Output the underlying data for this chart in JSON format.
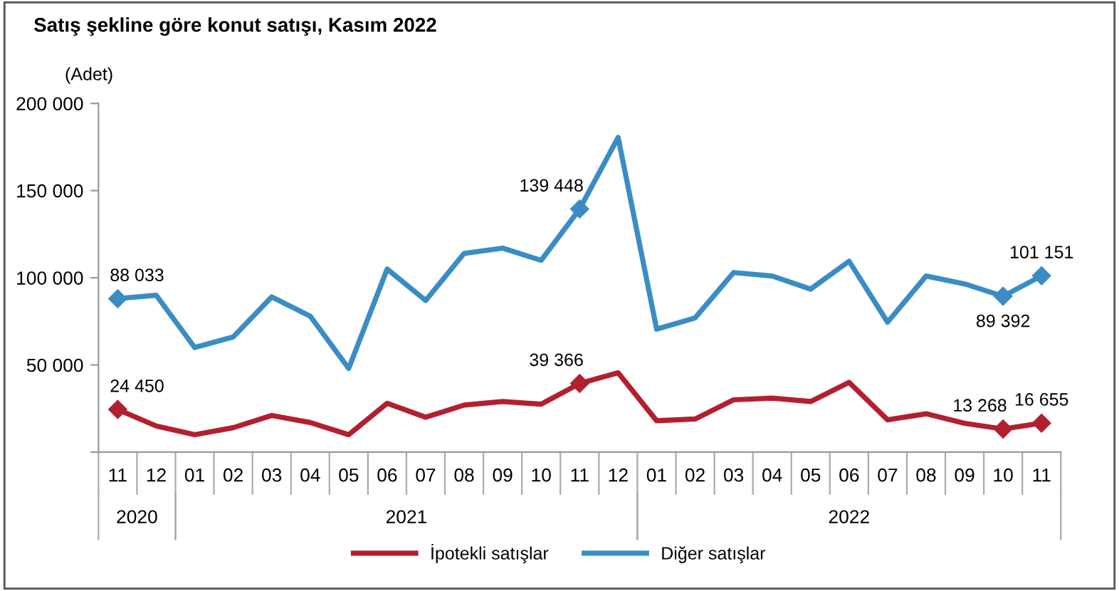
{
  "chart_data": {
    "type": "line",
    "title": "Satış şekline göre konut satışı, Kasım 2022",
    "ylabel": "(Adet)",
    "categories": [
      "11",
      "12",
      "01",
      "02",
      "03",
      "04",
      "05",
      "06",
      "07",
      "08",
      "09",
      "10",
      "11",
      "12",
      "01",
      "02",
      "03",
      "04",
      "05",
      "06",
      "07",
      "08",
      "09",
      "10",
      "11"
    ],
    "annotations": [
      "2020",
      "2021",
      "2022"
    ],
    "series": [
      {
        "name": "İpotekli satışlar",
        "color": "#b22030",
        "values": [
          24450,
          15000,
          10000,
          14000,
          21000,
          17000,
          10000,
          28000,
          20000,
          27000,
          29000,
          27500,
          39366,
          45500,
          18000,
          19000,
          30000,
          31000,
          29000,
          40000,
          18500,
          22000,
          16500,
          13268,
          16655
        ],
        "value_labels": [
          "24 450",
          null,
          null,
          null,
          null,
          null,
          null,
          null,
          null,
          null,
          null,
          null,
          "39 366",
          null,
          null,
          null,
          null,
          null,
          null,
          null,
          null,
          null,
          null,
          "13 268",
          "16 655"
        ]
      },
      {
        "name": "Diğer satışlar",
        "color": "#3a8dc4",
        "values": [
          88033,
          90000,
          60000,
          66000,
          89000,
          78000,
          48000,
          105000,
          87000,
          114000,
          117000,
          110000,
          139448,
          180500,
          70500,
          77000,
          103000,
          101000,
          93500,
          109500,
          74500,
          101000,
          96500,
          89392,
          101151
        ],
        "value_labels": [
          "88 033",
          null,
          null,
          null,
          null,
          null,
          null,
          null,
          null,
          null,
          null,
          null,
          "139 448",
          null,
          null,
          null,
          null,
          null,
          null,
          null,
          null,
          null,
          null,
          "89 392",
          "101 151"
        ]
      }
    ],
    "ylim": [
      0,
      200000
    ],
    "yticks": [
      {
        "value": 0,
        "label": null
      },
      {
        "value": 50000,
        "label": "50 000"
      },
      {
        "value": 100000,
        "label": "100 000"
      },
      {
        "value": 150000,
        "label": "150 000"
      },
      {
        "value": 200000,
        "label": "200 000"
      }
    ],
    "line_style": "solid",
    "grid": false,
    "legend": "bottom"
  }
}
